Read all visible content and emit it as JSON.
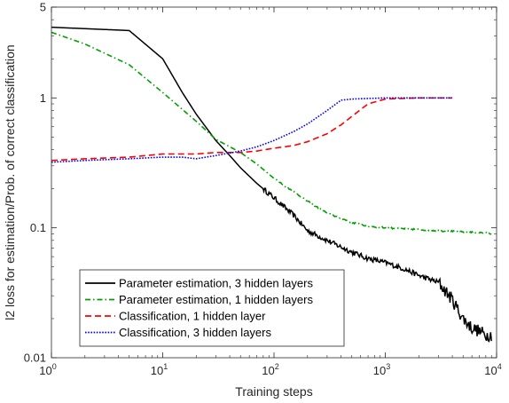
{
  "chart_data": {
    "type": "line",
    "xlabel": "Training steps",
    "ylabel": "l2 loss for estimation/Prob. of correct classification",
    "xscale": "log",
    "yscale": "log",
    "xlim": [
      1,
      10000
    ],
    "ylim": [
      0.01,
      5
    ],
    "x_ticks": [
      {
        "base": "10",
        "exp": "0",
        "value": 1
      },
      {
        "base": "10",
        "exp": "1",
        "value": 10
      },
      {
        "base": "10",
        "exp": "2",
        "value": 100
      },
      {
        "base": "10",
        "exp": "3",
        "value": 1000
      },
      {
        "base": "10",
        "exp": "4",
        "value": 10000
      }
    ],
    "y_ticks": [
      {
        "label": "0.01",
        "value": 0.01
      },
      {
        "label": "0.1",
        "value": 0.1
      },
      {
        "label": "1",
        "value": 1
      },
      {
        "label": "5",
        "value": 5
      }
    ],
    "grid": false,
    "legend_position": "lower-left",
    "series": [
      {
        "name": "Parameter estimation, 3 hidden layers",
        "color": "#000000",
        "dash": "solid",
        "x": [
          1,
          5,
          10,
          15,
          20,
          30,
          40,
          50,
          70,
          100,
          150,
          200,
          300,
          500,
          700,
          1000,
          1500,
          2000,
          3000,
          4000,
          5000,
          6000,
          7000,
          8000,
          9000
        ],
        "y": [
          3.5,
          3.3,
          2.0,
          1.1,
          0.75,
          0.47,
          0.36,
          0.29,
          0.22,
          0.17,
          0.125,
          0.095,
          0.08,
          0.065,
          0.058,
          0.054,
          0.048,
          0.043,
          0.038,
          0.028,
          0.02,
          0.017,
          0.016,
          0.015,
          0.015
        ],
        "noisy": true
      },
      {
        "name": "Parameter estimation, 1 hidden layers",
        "color": "#00a000",
        "dash": "dashdot",
        "x": [
          1,
          2,
          5,
          10,
          20,
          30,
          50,
          70,
          100,
          150,
          200,
          300,
          500,
          700,
          1000,
          2000,
          3000,
          5000,
          7000,
          9000
        ],
        "y": [
          3.2,
          2.6,
          1.8,
          1.1,
          0.66,
          0.48,
          0.38,
          0.31,
          0.24,
          0.19,
          0.16,
          0.13,
          0.11,
          0.103,
          0.1,
          0.097,
          0.095,
          0.093,
          0.092,
          0.09
        ],
        "noisy": false
      },
      {
        "name": "Classification, 1 hidden layer",
        "color": "#ff0000",
        "dash": "dashed",
        "x": [
          1,
          2,
          5,
          10,
          20,
          30,
          50,
          70,
          100,
          150,
          200,
          300,
          400,
          500,
          700,
          1000,
          2000,
          3000,
          4000
        ],
        "y": [
          0.33,
          0.34,
          0.35,
          0.37,
          0.37,
          0.38,
          0.38,
          0.39,
          0.41,
          0.43,
          0.46,
          0.53,
          0.62,
          0.72,
          0.9,
          0.98,
          1.0,
          1.0,
          1.0
        ],
        "noisy": false
      },
      {
        "name": "Classification, 3 hidden layers",
        "color": "#0000ff",
        "dash": "dotted",
        "x": [
          1,
          2,
          5,
          10,
          15,
          20,
          30,
          50,
          70,
          100,
          150,
          200,
          300,
          400,
          500,
          700,
          1000,
          2000,
          3000,
          4000
        ],
        "y": [
          0.32,
          0.33,
          0.34,
          0.35,
          0.35,
          0.34,
          0.36,
          0.39,
          0.42,
          0.47,
          0.55,
          0.63,
          0.8,
          0.96,
          0.98,
          0.99,
          1.0,
          1.0,
          1.0,
          1.0
        ],
        "noisy": false
      }
    ]
  }
}
